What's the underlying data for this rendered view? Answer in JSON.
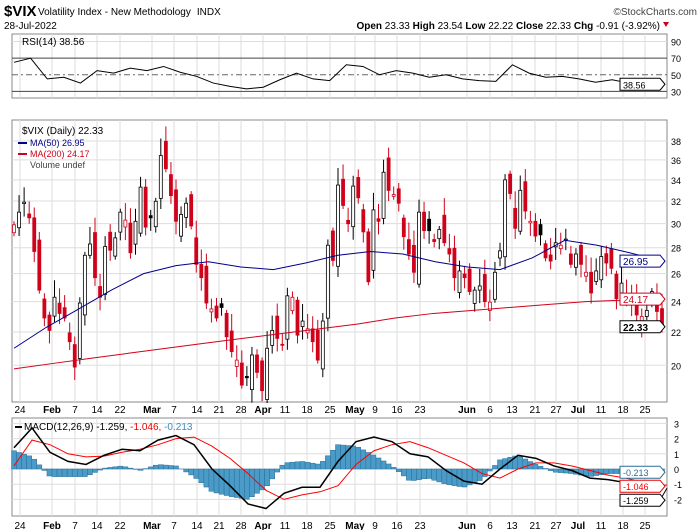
{
  "header": {
    "symbol": "$VIX",
    "name": "Volatility Index - New Methodology",
    "exchange": "INDX",
    "date": "28-Jul-2022",
    "brand": "©StockCharts.com",
    "open_label": "Open",
    "open": "23.33",
    "high_label": "High",
    "high": "23.54",
    "low_label": "Low",
    "low": "22.22",
    "close_label": "Close",
    "close": "22.33",
    "chg_label": "Chg",
    "chg": "-0.91 (-3.92%)"
  },
  "colors": {
    "up": "#000000",
    "down": "#d0021b",
    "ma50": "#00008b",
    "ma200": "#d0021b",
    "macd": "#000000",
    "signal": "#ff0000",
    "hist": "#4a9bc7"
  },
  "chart_data": [
    {
      "type": "line",
      "title": "RSI(14) 38.56",
      "legend": "RSI(14) 38.56",
      "ylim": [
        0,
        100
      ],
      "yticks": [
        "90",
        "70",
        "50",
        "30"
      ],
      "last_label": "38.56",
      "values": [
        65,
        70,
        45,
        47,
        40,
        55,
        52,
        58,
        55,
        60,
        53,
        48,
        40,
        36,
        33,
        35,
        44,
        52,
        45,
        43,
        62,
        60,
        50,
        55,
        52,
        47,
        50,
        45,
        43,
        42,
        62,
        52,
        47,
        48,
        45,
        41,
        44,
        40,
        40,
        38.56
      ]
    },
    {
      "type": "candlestick",
      "scale": "log",
      "ylim": [
        18,
        40
      ],
      "yticks": [
        "38",
        "36",
        "34",
        "32",
        "30",
        "28",
        "26",
        "24",
        "22",
        "20"
      ],
      "legend": {
        "price": "$VIX (Daily) 22.33",
        "ma50": "MA(50) 26.95",
        "ma200": "MA(200) 24.17",
        "volume": "Volume undef"
      },
      "last_labels": {
        "ma50": "26.95",
        "ma200": "24.17",
        "close": "22.33"
      },
      "x_labels": [
        "24",
        "Feb",
        "7",
        "14",
        "22",
        "Mar",
        "7",
        "14",
        "21",
        "28",
        "Apr",
        "11",
        "18",
        "25",
        "May",
        "9",
        "16",
        "23",
        "Jun",
        "6",
        "13",
        "21",
        "27",
        "Jul",
        "11",
        "18",
        "25"
      ],
      "closes": [
        29.9,
        31,
        31.9,
        30.5,
        27.7,
        24.8,
        22.9,
        22.1,
        24.3,
        23.2,
        22.9,
        21.4,
        19.9,
        23.9,
        27.4,
        28.3,
        25.7,
        24.3,
        28.1,
        27.8,
        28.8,
        31,
        30.3,
        27.6,
        30.2,
        33.3,
        29.7,
        30.5,
        31.98,
        36.45,
        35.1,
        32.5,
        30.2,
        30.8,
        31.8,
        29.8,
        26.7,
        25.7,
        23.9,
        23.5,
        22.9,
        23.6,
        21.7,
        20.8,
        20.3,
        18.9,
        19.3,
        20.6,
        19.6,
        18.6,
        21,
        22.1,
        21.6,
        21.2,
        24.4,
        24.3,
        21.8,
        22.7,
        22.2,
        21.4,
        20.3,
        22.7,
        28.2,
        27,
        33.5,
        31.6,
        29.99,
        33.4,
        32.3,
        29.3,
        25.4,
        31.2,
        30.2,
        34.75,
        32.99,
        32.6,
        31.8,
        28.9,
        27.5,
        26.1,
        31,
        29.4,
        29.4,
        28.5,
        29.5,
        28.4,
        27.5,
        25.7,
        26.2,
        25.7,
        24.7,
        24.8,
        25.1,
        24,
        23.96,
        26.1,
        27.75,
        34,
        32.7,
        29.6,
        33,
        31.1,
        30.2,
        28.95,
        29.05,
        27.2,
        26.95,
        28.4,
        28.2,
        28.7,
        26.7,
        27.5,
        26.7,
        26.1,
        24.6,
        26.2,
        27.3,
        26.8,
        26.4,
        24.2,
        25.3,
        24.5,
        23.9,
        23.1,
        23,
        23.4,
        24.7,
        23.33,
        22.33
      ],
      "ma50": [
        21,
        22.3,
        23.5,
        24.8,
        26,
        26.6,
        26.9,
        26.5,
        26.3,
        26.8,
        27.4,
        27.7,
        27.5,
        26.9,
        26.5,
        26.3,
        27.2,
        28.6,
        28.2,
        27.6,
        26.95
      ],
      "ma200": [
        19.8,
        20.1,
        20.4,
        20.7,
        21,
        21.3,
        21.6,
        21.9,
        22.2,
        22.5,
        22.9,
        23.2,
        23.4,
        23.6,
        23.8,
        24,
        24.1,
        24.17
      ]
    },
    {
      "type": "line",
      "legend": {
        "name": "MACD(12,26,9)",
        "macd": "-1.259",
        "signal": "-1.046",
        "hist": "-0.213"
      },
      "ylim": [
        -3.2,
        3.2
      ],
      "yticks": [
        "3",
        "2",
        "1",
        "0",
        "-1",
        "-2"
      ],
      "last_labels": {
        "hist": "-0.213",
        "signal": "-1.046",
        "macd": "-1.259"
      },
      "macd": [
        1.4,
        2.7,
        1.1,
        0.5,
        0.3,
        0.9,
        1.3,
        1.2,
        1.9,
        2.2,
        1.6,
        0,
        -1.1,
        -2.3,
        -2.6,
        -1.6,
        -1.2,
        -1.2,
        0.5,
        1.8,
        2.1,
        1.8,
        1,
        0.8,
        -0.1,
        -0.8,
        -1,
        0,
        0.9,
        0.7,
        0.2,
        -0.1,
        -0.6,
        -0.7,
        -0.9,
        -1.2,
        -1.259
      ],
      "signal": [
        0.2,
        1.9,
        1.6,
        1,
        0.8,
        0.85,
        1.1,
        1.3,
        1.6,
        2,
        2.1,
        1.5,
        0.7,
        -0.3,
        -1.4,
        -2,
        -1.7,
        -1.5,
        -1.1,
        0.3,
        1.2,
        1.6,
        1.8,
        1.4,
        0.9,
        0.4,
        -0.3,
        -0.6,
        0,
        0.4,
        0.4,
        0.2,
        -0.1,
        -0.4,
        -0.6,
        -0.9,
        -1.046
      ]
    }
  ]
}
